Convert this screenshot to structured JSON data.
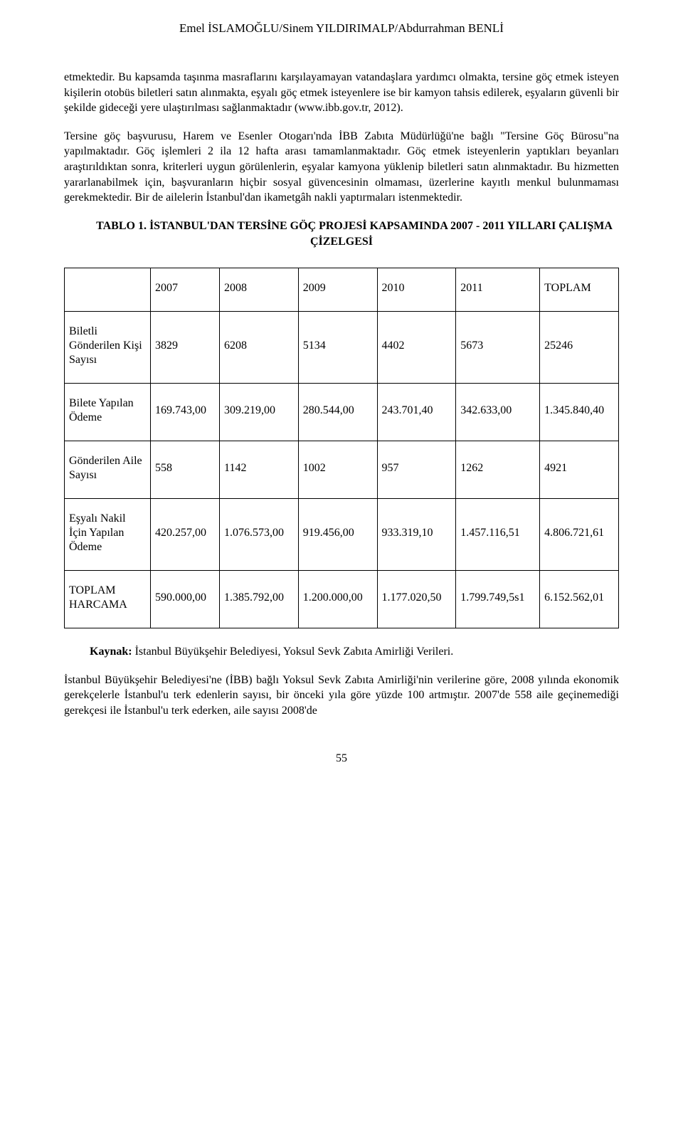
{
  "header": {
    "authors": "Emel İSLAMOĞLU/Sinem YILDIRIMALP/Abdurrahman BENLİ"
  },
  "paragraphs": {
    "p1": "etmektedir. Bu kapsamda taşınma masraflarını karşılayamayan vatandaşlara yardımcı olmakta, tersine göç etmek isteyen kişilerin otobüs biletleri satın alınmakta, eşyalı göç etmek isteyenlere ise bir kamyon tahsis edilerek, eşyaların güvenli bir şekilde gideceği yere ulaştırılması sağlanmaktadır (www.ibb.gov.tr, 2012).",
    "p2": "Tersine göç başvurusu, Harem ve Esenler Otogarı'nda İBB Zabıta Müdürlüğü'ne bağlı \"Tersine Göç Bürosu\"na yapılmaktadır. Göç işlemleri 2 ila 12 hafta arası tamamlanmaktadır. Göç etmek isteyenlerin yaptıkları beyanları araştırıldıktan sonra, kriterleri uygun görülenlerin, eşyalar kamyona yüklenip biletleri satın alınmaktadır. Bu hizmetten yararlanabilmek için, başvuranların hiçbir sosyal güvencesinin olmaması, üzerlerine kayıtlı menkul bulunmaması gerekmektedir. Bir de ailelerin İstanbul'dan ikametgâh nakli yaptırmaları istenmektedir.",
    "p3": "İstanbul Büyükşehir Belediyesi'ne (İBB) bağlı Yoksul Sevk Zabıta Amirliği'nin verilerine göre, 2008 yılında ekonomik gerekçelerle İstanbul'u terk edenlerin sayısı, bir önceki yıla göre yüzde 100 artmıştır. 2007'de 558 aile geçinemediği gerekçesi ile İstanbul'u terk ederken, aile sayısı 2008'de"
  },
  "table": {
    "title": "TABLO 1. İSTANBUL'DAN TERSİNE GÖÇ PROJESİ KAPSAMINDA 2007 - 2011 YILLARI ÇALIŞMA ÇİZELGESİ",
    "columns": [
      "",
      "2007",
      "2008",
      "2009",
      "2010",
      "2011",
      "TOPLAM"
    ],
    "rows": [
      {
        "label": "Biletli Gönderilen Kişi Sayısı",
        "cells": [
          "3829",
          "6208",
          "5134",
          "4402",
          "5673",
          "25246"
        ]
      },
      {
        "label": "Bilete Yapılan Ödeme",
        "cells": [
          "169.743,00",
          "309.219,00",
          "280.544,00",
          "243.701,40",
          "342.633,00",
          "1.345.840,40"
        ]
      },
      {
        "label": "Gönderilen Aile Sayısı",
        "cells": [
          "558",
          "1142",
          "1002",
          "957",
          "1262",
          "4921"
        ]
      },
      {
        "label": "Eşyalı Nakil İçin Yapılan Ödeme",
        "cells": [
          "420.257,00",
          "1.076.573,00",
          "919.456,00",
          "933.319,10",
          "1.457.116,51",
          "4.806.721,61"
        ]
      },
      {
        "label": "TOPLAM HARCAMA",
        "cells": [
          "590.000,00",
          "1.385.792,00",
          "1.200.000,00",
          "1.177.020,50",
          "1.799.749,5s1",
          "6.152.562,01"
        ]
      }
    ]
  },
  "source": {
    "label": "Kaynak:",
    "text": " İstanbul Büyükşehir Belediyesi, Yoksul Sevk Zabıta Amirliği Verileri."
  },
  "page_number": "55"
}
